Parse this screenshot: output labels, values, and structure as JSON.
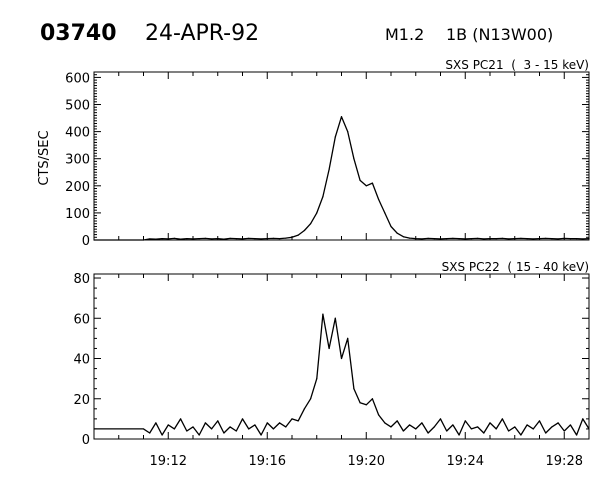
{
  "header": {
    "event_id": "03740",
    "date": "24-APR-92",
    "goes_class": "M1.2",
    "optical": "1B (N13W00)"
  },
  "colors": {
    "line": "#000000",
    "background": "#ffffff"
  },
  "chart_data": [
    {
      "type": "line",
      "title": "SXS PC21  (  3 - 15 keV)",
      "xlabel": "",
      "ylabel": "CTS/SEC",
      "xlim": [
        "19:09:00",
        "19:29:00"
      ],
      "ylim": [
        0,
        620
      ],
      "yticks": [
        "0",
        "100",
        "200",
        "300",
        "400",
        "500",
        "600"
      ],
      "xticks": [],
      "grid": false,
      "x": [
        "19:09:00",
        "19:11:00",
        "19:11:15",
        "19:11:30",
        "19:11:45",
        "19:12:00",
        "19:12:15",
        "19:12:30",
        "19:12:45",
        "19:13:00",
        "19:13:15",
        "19:13:30",
        "19:13:45",
        "19:14:00",
        "19:14:15",
        "19:14:30",
        "19:14:45",
        "19:15:00",
        "19:15:15",
        "19:15:30",
        "19:15:45",
        "19:16:00",
        "19:16:15",
        "19:16:30",
        "19:16:45",
        "19:17:00",
        "19:17:15",
        "19:17:30",
        "19:17:45",
        "19:18:00",
        "19:18:15",
        "19:18:30",
        "19:18:45",
        "19:19:00",
        "19:19:15",
        "19:19:30",
        "19:19:45",
        "19:20:00",
        "19:20:15",
        "19:20:30",
        "19:20:45",
        "19:21:00",
        "19:21:15",
        "19:21:30",
        "19:21:45",
        "19:22:00",
        "19:22:15",
        "19:22:30",
        "19:22:45",
        "19:23:00",
        "19:23:15",
        "19:23:30",
        "19:23:45",
        "19:24:00",
        "19:24:15",
        "19:24:30",
        "19:24:45",
        "19:25:00",
        "19:25:15",
        "19:25:30",
        "19:25:45",
        "19:26:00",
        "19:26:15",
        "19:26:30",
        "19:26:45",
        "19:27:00",
        "19:27:15",
        "19:27:30",
        "19:27:45",
        "19:28:00",
        "19:28:15",
        "19:28:30",
        "19:28:45",
        "19:29:00"
      ],
      "values": [
        0,
        0,
        4,
        3,
        5,
        4,
        6,
        3,
        5,
        4,
        5,
        6,
        4,
        5,
        3,
        6,
        5,
        4,
        6,
        5,
        4,
        5,
        6,
        5,
        7,
        10,
        18,
        35,
        60,
        100,
        160,
        260,
        380,
        455,
        400,
        300,
        220,
        200,
        210,
        150,
        100,
        50,
        25,
        12,
        7,
        5,
        4,
        6,
        5,
        4,
        5,
        6,
        5,
        4,
        5,
        6,
        4,
        5,
        5,
        6,
        4,
        5,
        6,
        5,
        4,
        5,
        6,
        5,
        4,
        6,
        5,
        5,
        4,
        5
      ]
    },
    {
      "type": "line",
      "title": "SXS PC22  ( 15 - 40 keV)",
      "xlabel": "",
      "ylabel": "",
      "xlim": [
        "19:09:00",
        "19:29:00"
      ],
      "ylim": [
        0,
        82
      ],
      "yticks": [
        "0",
        "20",
        "40",
        "60",
        "80"
      ],
      "xticks": [
        "19:12",
        "19:16",
        "19:20",
        "19:24",
        "19:28"
      ],
      "grid": false,
      "x": [
        "19:09:00",
        "19:11:00",
        "19:11:15",
        "19:11:30",
        "19:11:45",
        "19:12:00",
        "19:12:15",
        "19:12:30",
        "19:12:45",
        "19:13:00",
        "19:13:15",
        "19:13:30",
        "19:13:45",
        "19:14:00",
        "19:14:15",
        "19:14:30",
        "19:14:45",
        "19:15:00",
        "19:15:15",
        "19:15:30",
        "19:15:45",
        "19:16:00",
        "19:16:15",
        "19:16:30",
        "19:16:45",
        "19:17:00",
        "19:17:15",
        "19:17:30",
        "19:17:45",
        "19:18:00",
        "19:18:15",
        "19:18:30",
        "19:18:45",
        "19:19:00",
        "19:19:15",
        "19:19:30",
        "19:19:45",
        "19:20:00",
        "19:20:15",
        "19:20:30",
        "19:20:45",
        "19:21:00",
        "19:21:15",
        "19:21:30",
        "19:21:45",
        "19:22:00",
        "19:22:15",
        "19:22:30",
        "19:22:45",
        "19:23:00",
        "19:23:15",
        "19:23:30",
        "19:23:45",
        "19:24:00",
        "19:24:15",
        "19:24:30",
        "19:24:45",
        "19:25:00",
        "19:25:15",
        "19:25:30",
        "19:25:45",
        "19:26:00",
        "19:26:15",
        "19:26:30",
        "19:26:45",
        "19:27:00",
        "19:27:15",
        "19:27:30",
        "19:27:45",
        "19:28:00",
        "19:28:15",
        "19:28:30",
        "19:28:45",
        "19:29:00"
      ],
      "values": [
        5,
        5,
        3,
        8,
        2,
        7,
        5,
        10,
        4,
        6,
        2,
        8,
        5,
        9,
        3,
        6,
        4,
        10,
        5,
        7,
        2,
        8,
        5,
        8,
        6,
        10,
        9,
        15,
        20,
        30,
        62,
        45,
        60,
        40,
        50,
        25,
        18,
        17,
        20,
        12,
        8,
        6,
        9,
        4,
        7,
        5,
        8,
        3,
        6,
        10,
        4,
        7,
        2,
        9,
        5,
        6,
        3,
        8,
        5,
        10,
        4,
        6,
        2,
        7,
        5,
        9,
        3,
        6,
        8,
        4,
        7,
        2,
        10,
        5
      ]
    }
  ]
}
